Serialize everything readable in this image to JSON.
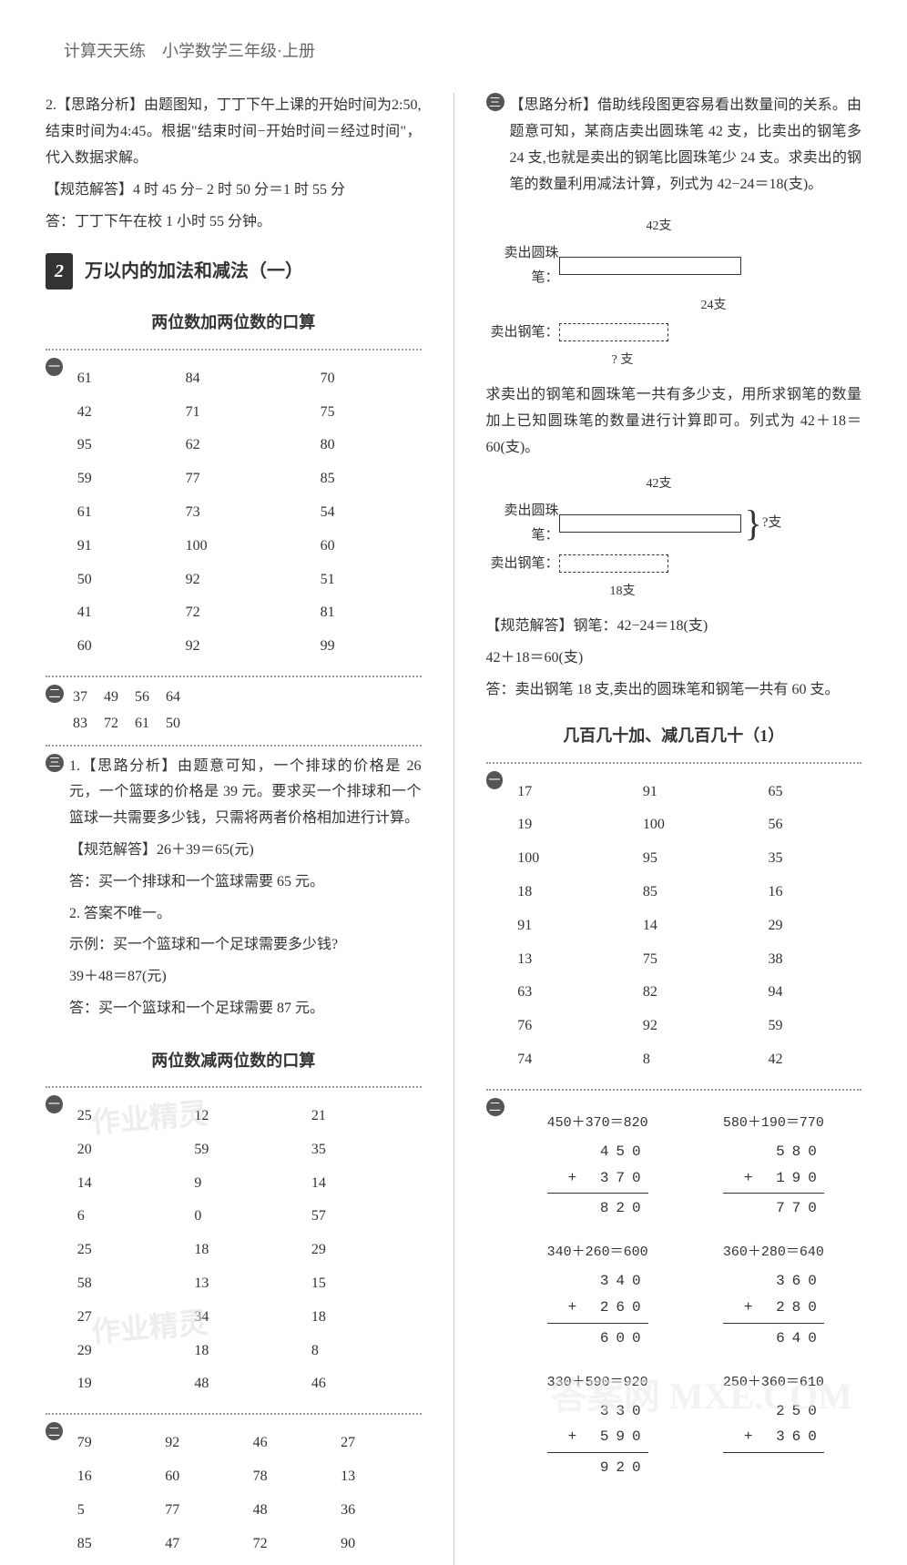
{
  "header": "计算天天练　小学数学三年级·上册",
  "left": {
    "q2_analysis": "2.【思路分析】由题图知，丁丁下午上课的开始时间为2:50,结束时间为4:45。根据\"结束时间−开始时间＝经过时间\"，代入数据求解。",
    "q2_answer": "【规范解答】4 时 45 分− 2 时 50 分＝1 时 55 分",
    "q2_conclude": "答：丁丁下午在校 1 小时 55 分钟。",
    "chapter_num": "2",
    "chapter_title": "万以内的加法和减法（一）",
    "section1": "两位数加两位数的口算",
    "table1": [
      [
        "61",
        "84",
        "70"
      ],
      [
        "42",
        "71",
        "75"
      ],
      [
        "95",
        "62",
        "80"
      ],
      [
        "59",
        "77",
        "85"
      ],
      [
        "61",
        "73",
        "54"
      ],
      [
        "91",
        "100",
        "60"
      ],
      [
        "50",
        "92",
        "51"
      ],
      [
        "41",
        "72",
        "81"
      ],
      [
        "60",
        "92",
        "99"
      ]
    ],
    "row2a": [
      "37",
      "49",
      "56",
      "64"
    ],
    "row2b": [
      "83",
      "72",
      "61",
      "50"
    ],
    "q3_l1": "1.【思路分析】由题意可知，一个排球的价格是 26 元，一个篮球的价格是 39 元。要求买一个排球和一个篮球一共需要多少钱，只需将两者价格相加进行计算。",
    "q3_l2": "【规范解答】26＋39＝65(元)",
    "q3_l3": "答：买一个排球和一个篮球需要 65 元。",
    "q3_l4": "2. 答案不唯一。",
    "q3_l5": "示例：买一个篮球和一个足球需要多少钱?",
    "q3_l6": "39＋48＝87(元)",
    "q3_l7": "答：买一个篮球和一个足球需要 87 元。",
    "section2": "两位数减两位数的口算",
    "table2": [
      [
        "25",
        "12",
        "21"
      ],
      [
        "20",
        "59",
        "35"
      ],
      [
        "14",
        "9",
        "14"
      ],
      [
        "6",
        "0",
        "57"
      ],
      [
        "25",
        "18",
        "29"
      ],
      [
        "58",
        "13",
        "15"
      ],
      [
        "27",
        "34",
        "18"
      ],
      [
        "29",
        "18",
        "8"
      ],
      [
        "19",
        "48",
        "46"
      ]
    ],
    "table3": [
      [
        "79",
        "92",
        "46",
        "27"
      ],
      [
        "16",
        "60",
        "78",
        "13"
      ],
      [
        "5",
        "77",
        "48",
        "36"
      ],
      [
        "85",
        "47",
        "72",
        "90"
      ]
    ]
  },
  "right": {
    "analysis": "【思路分析】借助线段图更容易看出数量间的关系。由题意可知，某商店卖出圆珠笔 42 支，比卖出的钢笔多24 支,也就是卖出的钢笔比圆珠笔少 24 支。求卖出的钢笔的数量利用减法计算，列式为 42−24＝18(支)。",
    "diag1_top": "42支",
    "diag1_r1": "卖出圆珠笔：",
    "diag1_r2": "卖出钢笔：",
    "diag1_bot": "24支",
    "diag1_q": "? 支",
    "mid": "求卖出的钢笔和圆珠笔一共有多少支，用所求钢笔的数量加上已知圆珠笔的数量进行计算即可。列式为 42＋18＝60(支)。",
    "diag2_r3": "18支",
    "diag2_q": "?支",
    "answer1": "【规范解答】钢笔：42−24＝18(支)",
    "answer2": "42＋18＝60(支)",
    "answer3": "答：卖出钢笔 18 支,卖出的圆珠笔和钢笔一共有 60 支。",
    "section3": "几百几十加、减几百几十（1）",
    "table4": [
      [
        "17",
        "91",
        "65"
      ],
      [
        "19",
        "100",
        "56"
      ],
      [
        "100",
        "95",
        "35"
      ],
      [
        "18",
        "85",
        "16"
      ],
      [
        "91",
        "14",
        "29"
      ],
      [
        "13",
        "75",
        "38"
      ],
      [
        "63",
        "82",
        "94"
      ],
      [
        "76",
        "92",
        "59"
      ],
      [
        "74",
        "8",
        "42"
      ]
    ],
    "calcs": [
      {
        "label": "450＋370＝820",
        "a": "450",
        "b": "370",
        "s": "820",
        "op": "+"
      },
      {
        "label": "580＋190＝770",
        "a": "580",
        "b": "190",
        "s": "770",
        "op": "+"
      },
      {
        "label": "340＋260＝600",
        "a": "340",
        "b": "260",
        "s": "600",
        "op": "+"
      },
      {
        "label": "360＋280＝640",
        "a": "360",
        "b": "280",
        "s": "640",
        "op": "+"
      },
      {
        "label": "330＋590＝920",
        "a": "330",
        "b": "590",
        "s": "920",
        "op": "+"
      },
      {
        "label": "250＋360＝610",
        "a": "250",
        "b": "360",
        "s": "",
        "op": "+"
      }
    ]
  },
  "watermarks": {
    "w1": "作业精灵",
    "w2": "作业精灵",
    "w3": "答案网 MXE.COM"
  }
}
